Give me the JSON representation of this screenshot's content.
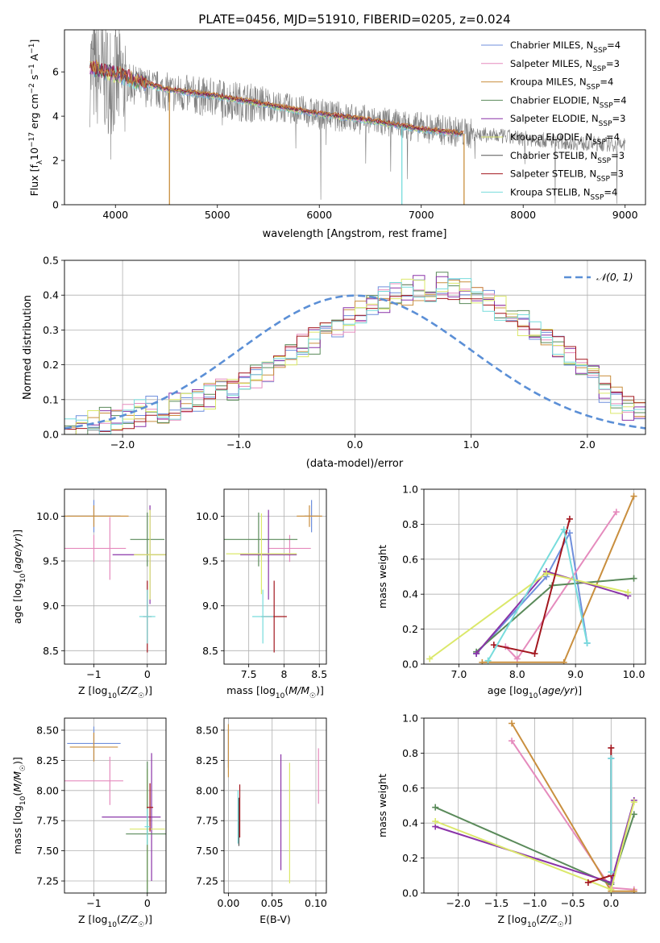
{
  "figure_title": "PLATE=0456, MJD=51910, FIBERID=0205, z=0.024",
  "series": [
    {
      "name": "Chabrier MILES",
      "nssp": "4",
      "color": "#6f8fdc"
    },
    {
      "name": "Salpeter MILES",
      "nssp": "3",
      "color": "#e58bbd"
    },
    {
      "name": "Kroupa MILES",
      "nssp": "4",
      "color": "#c98f3f"
    },
    {
      "name": "Chabrier ELODIE",
      "nssp": "4",
      "color": "#5a8a5a"
    },
    {
      "name": "Salpeter ELODIE",
      "nssp": "3",
      "color": "#8a34a8"
    },
    {
      "name": "Kroupa ELODIE",
      "nssp": "4",
      "color": "#dbe86a"
    },
    {
      "name": "Chabrier STELIB",
      "nssp": "3",
      "color": "#555555"
    },
    {
      "name": "Salpeter STELIB",
      "nssp": "3",
      "color": "#a3171f"
    },
    {
      "name": "Kroupa STELIB",
      "nssp": "4",
      "color": "#77dcdc"
    }
  ],
  "chart_data": [
    {
      "id": "spectrum",
      "type": "line",
      "title": "PLATE=0456, MJD=51910, FIBERID=0205, z=0.024",
      "xlabel": "wavelength [Angstrom, rest frame]",
      "ylabel": "Flux [f_λ 10^-17 erg cm^-2 s^-1 A^-1]",
      "xlim": [
        3500,
        9200
      ],
      "ylim": [
        0,
        7.9
      ],
      "xticks": [
        4000,
        5000,
        6000,
        7000,
        8000,
        9000
      ],
      "yticks": [
        0,
        2,
        4,
        6
      ],
      "grid": false,
      "legend": "top-right",
      "data_continuum": {
        "x": [
          3750,
          4000,
          4500,
          5000,
          5500,
          6000,
          6500,
          7000,
          7500,
          8000,
          8500,
          9000
        ],
        "y": [
          6.1,
          5.6,
          5.1,
          4.8,
          4.5,
          4.1,
          3.8,
          3.5,
          3.2,
          3.0,
          2.8,
          2.7
        ]
      },
      "model_continuum": {
        "x": [
          3750,
          4000,
          4500,
          5000,
          5500,
          6000,
          6500,
          7000,
          7400
        ],
        "y": [
          6.2,
          5.9,
          5.2,
          4.9,
          4.5,
          4.1,
          3.8,
          3.4,
          3.2
        ]
      }
    },
    {
      "id": "residuals",
      "type": "bar",
      "xlabel": "(data-model)/error",
      "ylabel": "Normed distribution",
      "xlim": [
        -2.5,
        2.5
      ],
      "ylim": [
        0,
        0.5
      ],
      "xticks": [
        -2,
        -1,
        0,
        1,
        2
      ],
      "yticks": [
        0.0,
        0.1,
        0.2,
        0.3,
        0.4,
        0.5
      ],
      "grid": true,
      "legend": "top-right",
      "reference_label": "𝒩(0, 1)",
      "reference_color": "#5b8fd6",
      "bin_width": 0.1,
      "hist_values": [
        0.01,
        0.02,
        0.03,
        0.04,
        0.05,
        0.05,
        0.06,
        0.07,
        0.07,
        0.08,
        0.09,
        0.1,
        0.11,
        0.12,
        0.13,
        0.15,
        0.17,
        0.19,
        0.21,
        0.23,
        0.25,
        0.27,
        0.29,
        0.31,
        0.33,
        0.35,
        0.37,
        0.39,
        0.4,
        0.41,
        0.42,
        0.42,
        0.43,
        0.42,
        0.41,
        0.4,
        0.38,
        0.36,
        0.34,
        0.32,
        0.3,
        0.28,
        0.25,
        0.22,
        0.19,
        0.16,
        0.13,
        0.1,
        0.08,
        0.06
      ]
    },
    {
      "id": "age-vs-z",
      "type": "scatter",
      "xlabel": "Z [log10(Z/Z☉)]",
      "ylabel": "age [log10(age/yr)]",
      "xlim": [
        -1.55,
        0.35
      ],
      "ylim": [
        8.35,
        10.3
      ],
      "xticks": [
        -1,
        0
      ],
      "yticks": [
        8.5,
        9.0,
        9.5,
        10.0
      ],
      "grid": true,
      "points": [
        {
          "s": 0,
          "x": -1.0,
          "y": 10.0,
          "ex": 0.5,
          "ey": 0.18
        },
        {
          "s": 2,
          "x": -1.0,
          "y": 10.0,
          "ex": 0.65,
          "ey": 0.12
        },
        {
          "s": 1,
          "x": -1.0,
          "y": 9.64,
          "ex": 0.6,
          "ey": 0.15
        },
        {
          "s": 1,
          "x": -0.7,
          "y": 9.64,
          "ex": 0.0,
          "ey": 0.35
        },
        {
          "s": 3,
          "x": 0.0,
          "y": 9.74,
          "ex": 0.32,
          "ey": 0.3
        },
        {
          "s": 4,
          "x": 0.05,
          "y": 9.57,
          "ex": 0.7,
          "ey": 0.55
        },
        {
          "s": 5,
          "x": 0.05,
          "y": 9.57,
          "ex": 0.3,
          "ey": 0.5
        },
        {
          "s": 7,
          "x": 0.0,
          "y": 8.88,
          "ex": 0.08,
          "ey": 0.4
        },
        {
          "s": 8,
          "x": 0.0,
          "y": 8.88,
          "ex": 0.15,
          "ey": 0.3
        }
      ]
    },
    {
      "id": "age-vs-mass",
      "type": "scatter",
      "xlabel": "mass [log10(M/M☉)]",
      "ylabel": "",
      "xlim": [
        7.15,
        8.6
      ],
      "ylim": [
        8.35,
        10.3
      ],
      "xticks": [
        7.5,
        8.0,
        8.5
      ],
      "yticks": [
        8.5,
        9.0,
        9.5,
        10.0
      ],
      "grid": true,
      "points": [
        {
          "s": 0,
          "x": 8.39,
          "y": 10.0,
          "ex": 0.1,
          "ey": 0.18
        },
        {
          "s": 2,
          "x": 8.36,
          "y": 10.0,
          "ex": 0.18,
          "ey": 0.12
        },
        {
          "s": 1,
          "x": 8.08,
          "y": 9.64,
          "ex": 0.3,
          "ey": 0.15
        },
        {
          "s": 3,
          "x": 7.64,
          "y": 9.74,
          "ex": 0.55,
          "ey": 0.3
        },
        {
          "s": 4,
          "x": 7.78,
          "y": 9.57,
          "ex": 0.4,
          "ey": 0.5
        },
        {
          "s": 5,
          "x": 7.68,
          "y": 9.58,
          "ex": 0.5,
          "ey": 0.45
        },
        {
          "s": 7,
          "x": 7.86,
          "y": 8.88,
          "ex": 0.18,
          "ey": 0.4
        },
        {
          "s": 8,
          "x": 7.7,
          "y": 8.88,
          "ex": 0.15,
          "ey": 0.3
        }
      ]
    },
    {
      "id": "weight-vs-age",
      "type": "line",
      "xlabel": "age  [log10(age/yr)]",
      "ylabel": "mass weight",
      "xlim": [
        6.4,
        10.2
      ],
      "ylim": [
        0.0,
        1.0
      ],
      "xticks": [
        7,
        8,
        9,
        10
      ],
      "yticks": [
        0.0,
        0.2,
        0.4,
        0.6,
        0.8,
        1.0
      ],
      "grid": true,
      "series_points": [
        {
          "s": 0,
          "x": [
            7.3,
            8.5,
            8.9,
            9.2
          ],
          "y": [
            0.06,
            0.5,
            0.75,
            0.12
          ]
        },
        {
          "s": 1,
          "x": [
            7.8,
            8.0,
            9.7
          ],
          "y": [
            0.1,
            0.03,
            0.87
          ]
        },
        {
          "s": 2,
          "x": [
            7.4,
            8.8,
            10.0
          ],
          "y": [
            0.01,
            0.01,
            0.96
          ]
        },
        {
          "s": 3,
          "x": [
            7.3,
            8.6,
            10.0
          ],
          "y": [
            0.07,
            0.45,
            0.49
          ]
        },
        {
          "s": 4,
          "x": [
            7.3,
            8.5,
            9.9
          ],
          "y": [
            0.06,
            0.53,
            0.39
          ]
        },
        {
          "s": 5,
          "x": [
            6.5,
            8.5,
            9.9
          ],
          "y": [
            0.03,
            0.52,
            0.41
          ]
        },
        {
          "s": 7,
          "x": [
            7.6,
            8.3,
            8.9
          ],
          "y": [
            0.11,
            0.06,
            0.83
          ]
        },
        {
          "s": 8,
          "x": [
            7.5,
            8.8,
            9.2
          ],
          "y": [
            0.02,
            0.77,
            0.12
          ]
        }
      ]
    },
    {
      "id": "mass-vs-z",
      "type": "scatter",
      "xlabel": "Z [log10(Z/Z☉)]",
      "ylabel": "mass [log10(M/M☉)]",
      "xlim": [
        -1.55,
        0.35
      ],
      "ylim": [
        7.15,
        8.6
      ],
      "xticks": [
        -1,
        0
      ],
      "yticks": [
        7.25,
        7.5,
        7.75,
        8.0,
        8.25,
        8.5
      ],
      "grid": true,
      "points": [
        {
          "s": 0,
          "x": -1.0,
          "y": 8.39,
          "ex": 0.5,
          "ey": 0.14
        },
        {
          "s": 2,
          "x": -1.0,
          "y": 8.36,
          "ex": 0.45,
          "ey": 0.12
        },
        {
          "s": 1,
          "x": -1.0,
          "y": 8.08,
          "ex": 0.55,
          "ey": 0.0
        },
        {
          "s": 1,
          "x": -0.7,
          "y": 8.08,
          "ex": 0.0,
          "ey": 0.2
        },
        {
          "s": 4,
          "x": -0.3,
          "y": 7.78,
          "ex": 0.55,
          "ey": 0.0
        },
        {
          "s": 4,
          "x": 0.08,
          "y": 7.78,
          "ex": 0.0,
          "ey": 0.53
        },
        {
          "s": 5,
          "x": 0.0,
          "y": 7.68,
          "ex": 0.33,
          "ey": 0.5
        },
        {
          "s": 3,
          "x": 0.0,
          "y": 7.64,
          "ex": 0.4,
          "ey": 0.6
        },
        {
          "s": 7,
          "x": 0.05,
          "y": 7.86,
          "ex": 0.06,
          "ey": 0.2
        },
        {
          "s": 8,
          "x": 0.0,
          "y": 7.7,
          "ex": 0.05,
          "ey": 0.15
        }
      ]
    },
    {
      "id": "mass-vs-ebv",
      "type": "scatter",
      "xlabel": "E(B-V)",
      "ylabel": "",
      "xlim": [
        -0.005,
        0.112
      ],
      "ylim": [
        7.15,
        8.6
      ],
      "xticks": [
        0.0,
        0.05,
        0.1
      ],
      "yticks": [
        7.25,
        7.5,
        7.75,
        8.0,
        8.25,
        8.5
      ],
      "grid": true,
      "points": [
        {
          "s": 0,
          "x": 0.0,
          "y": 8.35,
          "ex": 0.0,
          "ey": 0.16
        },
        {
          "s": 2,
          "x": 0.0,
          "y": 8.33,
          "ex": 0.0,
          "ey": 0.22
        },
        {
          "s": 8,
          "x": 0.011,
          "y": 7.78,
          "ex": 0.0,
          "ey": 0.22
        },
        {
          "s": 6,
          "x": 0.012,
          "y": 7.74,
          "ex": 0.0,
          "ey": 0.2
        },
        {
          "s": 7,
          "x": 0.013,
          "y": 7.83,
          "ex": 0.0,
          "ey": 0.22
        },
        {
          "s": 4,
          "x": 0.06,
          "y": 7.82,
          "ex": 0.0,
          "ey": 0.48
        },
        {
          "s": 5,
          "x": 0.07,
          "y": 7.73,
          "ex": 0.0,
          "ey": 0.5
        },
        {
          "s": 1,
          "x": 0.103,
          "y": 8.12,
          "ex": 0.0,
          "ey": 0.23
        }
      ]
    },
    {
      "id": "weight-vs-z",
      "type": "line",
      "xlabel": "Z [log10(Z/Z☉)]",
      "ylabel": "mass weight",
      "xlim": [
        -2.45,
        0.45
      ],
      "ylim": [
        0.0,
        1.0
      ],
      "xticks": [
        -2.0,
        -1.5,
        -1.0,
        -0.5,
        0.0
      ],
      "yticks": [
        0.0,
        0.2,
        0.4,
        0.6,
        0.8,
        1.0
      ],
      "grid": true,
      "series_points": [
        {
          "s": 0,
          "x": [
            0.0,
            0.0
          ],
          "y": [
            0.1,
            0.77
          ]
        },
        {
          "s": 1,
          "x": [
            -1.3,
            0.0,
            0.3
          ],
          "y": [
            0.87,
            0.03,
            0.02
          ]
        },
        {
          "s": 2,
          "x": [
            -1.3,
            0.0,
            0.3
          ],
          "y": [
            0.97,
            0.01,
            0.01
          ]
        },
        {
          "s": 3,
          "x": [
            -2.3,
            0.0,
            0.3
          ],
          "y": [
            0.49,
            0.05,
            0.45
          ]
        },
        {
          "s": 4,
          "x": [
            -2.3,
            0.0,
            0.3
          ],
          "y": [
            0.38,
            0.06,
            0.53
          ]
        },
        {
          "s": 5,
          "x": [
            -2.3,
            0.0,
            0.3
          ],
          "y": [
            0.41,
            0.02,
            0.52
          ]
        },
        {
          "s": 7,
          "x": [
            -0.3,
            0.0,
            0.0
          ],
          "y": [
            0.06,
            0.1,
            0.83
          ]
        },
        {
          "s": 8,
          "x": [
            0.0,
            0.0
          ],
          "y": [
            0.12,
            0.77
          ]
        }
      ]
    }
  ]
}
